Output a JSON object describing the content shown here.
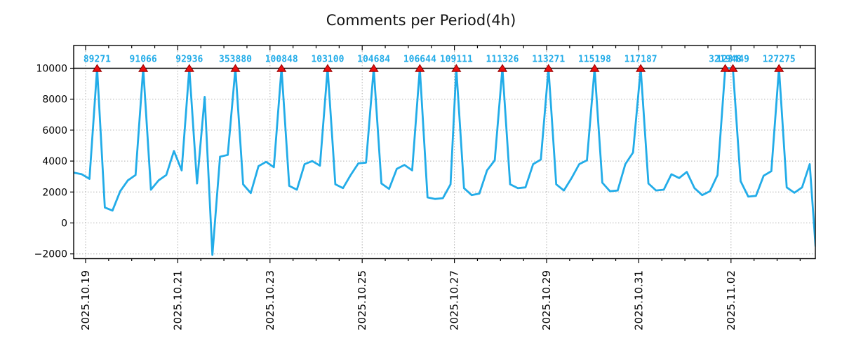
{
  "title": "Comments per Period(4h)",
  "colors": {
    "line": "#22ace8",
    "peak_label": "#22ace8",
    "marker_fill": "#e81010",
    "marker_edge": "#990000",
    "grid": "#b0b0b0",
    "axis": "#000000",
    "title_text": "#141414"
  },
  "chart_data": {
    "type": "line",
    "title": "Comments per Period(4h)",
    "period": "4h",
    "x_base_date": "2025-10-18",
    "x_tick_labels": [
      "2025.10.19",
      "2025.10.21",
      "2025.10.23",
      "2025.10.25",
      "2025.10.27",
      "2025.10.29",
      "2025.10.31",
      "2025.11.02"
    ],
    "x_tick_day_indices": [
      1,
      3,
      5,
      7,
      9,
      11,
      13,
      15
    ],
    "y_tick_labels": [
      "10000",
      "8000",
      "6000",
      "4000",
      "2000",
      "0",
      "−2000"
    ],
    "y_tick_values": [
      10000,
      8000,
      6000,
      4000,
      2000,
      0,
      -2000
    ],
    "cap_value": 10000,
    "grid": "dotted",
    "legend": "none",
    "points": [
      [
        0,
        18,
        3250
      ],
      [
        0,
        22,
        3150
      ],
      [
        1,
        2,
        2850
      ],
      [
        1,
        6,
        10000
      ],
      [
        1,
        10,
        1000
      ],
      [
        1,
        14,
        800
      ],
      [
        1,
        18,
        2050
      ],
      [
        1,
        22,
        2750
      ],
      [
        2,
        2,
        3100
      ],
      [
        2,
        6,
        10000
      ],
      [
        2,
        10,
        2150
      ],
      [
        2,
        14,
        2750
      ],
      [
        2,
        18,
        3100
      ],
      [
        2,
        22,
        4650
      ],
      [
        3,
        2,
        3400
      ],
      [
        3,
        6,
        10000
      ],
      [
        3,
        10,
        2550
      ],
      [
        3,
        14,
        8150
      ],
      [
        3,
        18,
        -2070
      ],
      [
        3,
        22,
        4280
      ],
      [
        4,
        2,
        4400
      ],
      [
        4,
        6,
        10000
      ],
      [
        4,
        10,
        2500
      ],
      [
        4,
        14,
        1930
      ],
      [
        4,
        18,
        3670
      ],
      [
        4,
        22,
        3950
      ],
      [
        5,
        2,
        3600
      ],
      [
        5,
        6,
        10000
      ],
      [
        5,
        10,
        2400
      ],
      [
        5,
        14,
        2150
      ],
      [
        5,
        18,
        3800
      ],
      [
        5,
        22,
        4000
      ],
      [
        6,
        2,
        3700
      ],
      [
        6,
        6,
        10000
      ],
      [
        6,
        10,
        2500
      ],
      [
        6,
        14,
        2250
      ],
      [
        6,
        18,
        3100
      ],
      [
        6,
        22,
        3850
      ],
      [
        7,
        2,
        3900
      ],
      [
        7,
        6,
        10000
      ],
      [
        7,
        10,
        2550
      ],
      [
        7,
        14,
        2200
      ],
      [
        7,
        18,
        3500
      ],
      [
        7,
        22,
        3750
      ],
      [
        8,
        2,
        3400
      ],
      [
        8,
        6,
        10000
      ],
      [
        8,
        10,
        1650
      ],
      [
        8,
        14,
        1550
      ],
      [
        8,
        18,
        1600
      ],
      [
        8,
        22,
        2500
      ],
      [
        9,
        1,
        10000
      ],
      [
        9,
        5,
        2250
      ],
      [
        9,
        9,
        1800
      ],
      [
        9,
        13,
        1900
      ],
      [
        9,
        17,
        3400
      ],
      [
        9,
        21,
        4050
      ],
      [
        10,
        1,
        10000
      ],
      [
        10,
        5,
        2500
      ],
      [
        10,
        9,
        2250
      ],
      [
        10,
        13,
        2300
      ],
      [
        10,
        17,
        3800
      ],
      [
        10,
        21,
        4100
      ],
      [
        11,
        1,
        10000
      ],
      [
        11,
        5,
        2500
      ],
      [
        11,
        9,
        2100
      ],
      [
        11,
        13,
        2900
      ],
      [
        11,
        17,
        3800
      ],
      [
        11,
        21,
        4050
      ],
      [
        12,
        1,
        10000
      ],
      [
        12,
        5,
        2600
      ],
      [
        12,
        9,
        2050
      ],
      [
        12,
        13,
        2100
      ],
      [
        12,
        17,
        3800
      ],
      [
        12,
        21,
        4550
      ],
      [
        13,
        1,
        10000
      ],
      [
        13,
        5,
        2550
      ],
      [
        13,
        9,
        2100
      ],
      [
        13,
        13,
        2150
      ],
      [
        13,
        17,
        3150
      ],
      [
        13,
        21,
        2900
      ],
      [
        14,
        1,
        3300
      ],
      [
        14,
        5,
        2250
      ],
      [
        14,
        9,
        1800
      ],
      [
        14,
        13,
        2050
      ],
      [
        14,
        17,
        3100
      ],
      [
        14,
        21,
        10000
      ],
      [
        15,
        1,
        10000
      ],
      [
        15,
        5,
        2700
      ],
      [
        15,
        9,
        1700
      ],
      [
        15,
        13,
        1750
      ],
      [
        15,
        17,
        3050
      ],
      [
        15,
        21,
        3350
      ],
      [
        16,
        1,
        10000
      ],
      [
        16,
        5,
        2300
      ],
      [
        16,
        9,
        1950
      ],
      [
        16,
        13,
        2300
      ],
      [
        16,
        17,
        3800
      ],
      [
        16,
        20,
        -1500
      ]
    ],
    "peaks": [
      {
        "day": 1,
        "hour": 6,
        "label": "89271"
      },
      {
        "day": 2,
        "hour": 6,
        "label": "91066"
      },
      {
        "day": 3,
        "hour": 6,
        "label": "92936"
      },
      {
        "day": 4,
        "hour": 6,
        "label": "353880"
      },
      {
        "day": 5,
        "hour": 6,
        "label": "100848"
      },
      {
        "day": 6,
        "hour": 6,
        "label": "103100"
      },
      {
        "day": 7,
        "hour": 6,
        "label": "104684"
      },
      {
        "day": 8,
        "hour": 6,
        "label": "106644"
      },
      {
        "day": 9,
        "hour": 1,
        "label": "109111"
      },
      {
        "day": 10,
        "hour": 1,
        "label": "111326"
      },
      {
        "day": 11,
        "hour": 1,
        "label": "113271"
      },
      {
        "day": 12,
        "hour": 1,
        "label": "115198"
      },
      {
        "day": 13,
        "hour": 1,
        "label": "117187"
      },
      {
        "day": 14,
        "hour": 21,
        "label": "321948"
      },
      {
        "day": 15,
        "hour": 1,
        "label": "123449"
      },
      {
        "day": 16,
        "hour": 1,
        "label": "127275"
      }
    ]
  }
}
